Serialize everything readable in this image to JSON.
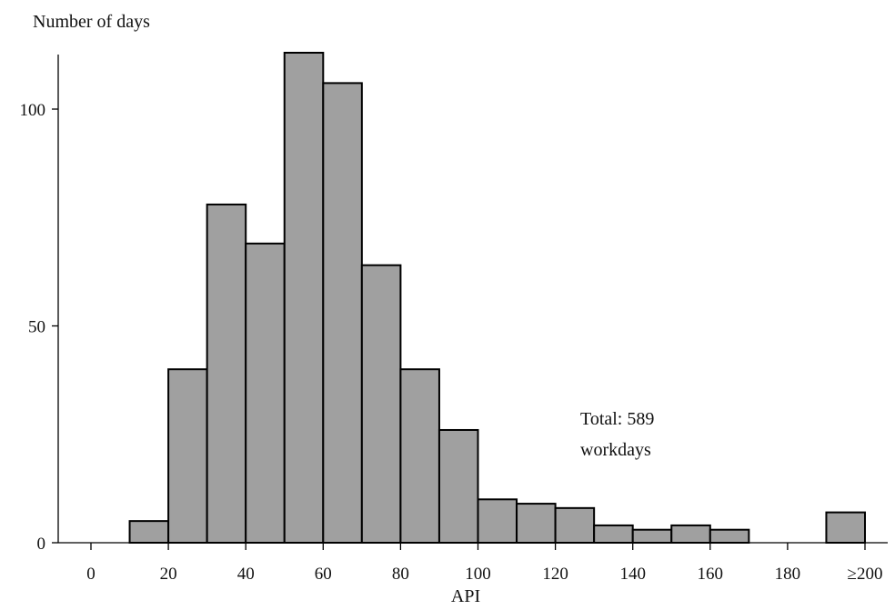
{
  "chart_data": {
    "type": "bar",
    "ylabel": "Number of days",
    "xlabel": "API",
    "annotation": [
      "Total: 589",
      "workdays"
    ],
    "bar_color": "#a0a0a0",
    "xlim": [
      0,
      200
    ],
    "ylim": [
      0,
      113
    ],
    "grid": false,
    "x_ticks": [
      {
        "value": 0,
        "label": "0"
      },
      {
        "value": 20,
        "label": "20"
      },
      {
        "value": 40,
        "label": "40"
      },
      {
        "value": 60,
        "label": "60"
      },
      {
        "value": 80,
        "label": "80"
      },
      {
        "value": 100,
        "label": "100"
      },
      {
        "value": 120,
        "label": "120"
      },
      {
        "value": 140,
        "label": "140"
      },
      {
        "value": 160,
        "label": "160"
      },
      {
        "value": 180,
        "label": "180"
      },
      {
        "value": 200,
        "label": "≥200"
      }
    ],
    "y_ticks": [
      {
        "value": 0,
        "label": "0"
      },
      {
        "value": 50,
        "label": "50"
      },
      {
        "value": 100,
        "label": "100"
      }
    ],
    "bins": [
      {
        "start": 10,
        "end": 20,
        "value": 5
      },
      {
        "start": 20,
        "end": 30,
        "value": 40
      },
      {
        "start": 30,
        "end": 40,
        "value": 78
      },
      {
        "start": 40,
        "end": 50,
        "value": 69
      },
      {
        "start": 50,
        "end": 60,
        "value": 113
      },
      {
        "start": 60,
        "end": 70,
        "value": 106
      },
      {
        "start": 70,
        "end": 80,
        "value": 64
      },
      {
        "start": 80,
        "end": 90,
        "value": 40
      },
      {
        "start": 90,
        "end": 100,
        "value": 26
      },
      {
        "start": 100,
        "end": 110,
        "value": 10
      },
      {
        "start": 110,
        "end": 120,
        "value": 9
      },
      {
        "start": 120,
        "end": 130,
        "value": 8
      },
      {
        "start": 130,
        "end": 140,
        "value": 4
      },
      {
        "start": 140,
        "end": 150,
        "value": 3
      },
      {
        "start": 150,
        "end": 160,
        "value": 4
      },
      {
        "start": 160,
        "end": 170,
        "value": 3
      },
      {
        "start": 190,
        "end": 200,
        "value": 7
      }
    ]
  }
}
